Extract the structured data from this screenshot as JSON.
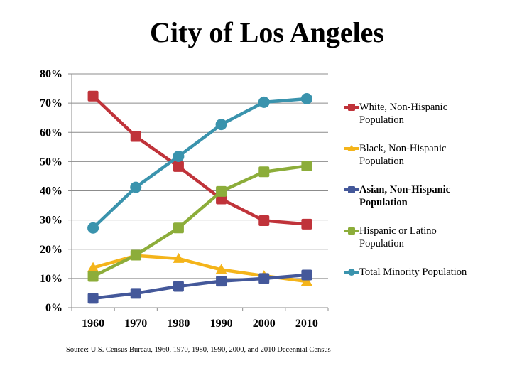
{
  "chart_data": {
    "type": "line",
    "title": "City of Los Angeles",
    "xlabel": "",
    "ylabel": "",
    "categories": [
      "1960",
      "1970",
      "1980",
      "1990",
      "2000",
      "2010"
    ],
    "ylim": [
      0,
      80
    ],
    "yticks": [
      "0%",
      "10%",
      "20%",
      "30%",
      "40%",
      "50%",
      "60%",
      "70%",
      "80%"
    ],
    "grid": true,
    "legend_position": "right",
    "series": [
      {
        "name": "White, Non-Hispanic Population",
        "marker": "square",
        "color": "#c0333a",
        "bold": false,
        "values": [
          72.4,
          58.6,
          48.3,
          37.2,
          29.8,
          28.6
        ]
      },
      {
        "name": "Black, Non-Hispanic Population",
        "marker": "triangle",
        "color": "#f4b41a",
        "bold": false,
        "values": [
          13.7,
          17.8,
          16.8,
          13.0,
          10.9,
          9.0
        ]
      },
      {
        "name": "Asian, Non-Hispanic Population",
        "marker": "square",
        "color": "#44589a",
        "bold": true,
        "values": [
          3.2,
          4.9,
          7.3,
          9.1,
          10.0,
          11.2
        ]
      },
      {
        "name": "Hispanic or Latino Population",
        "marker": "square",
        "color": "#8cad3a",
        "bold": false,
        "values": [
          10.7,
          18.0,
          27.3,
          39.8,
          46.5,
          48.5
        ]
      },
      {
        "name": "Total Minority Population",
        "marker": "circle",
        "color": "#3a93ad",
        "bold": false,
        "values": [
          27.3,
          41.2,
          51.8,
          62.7,
          70.3,
          71.5
        ]
      }
    ],
    "legend_lines": [
      [
        "White, Non-Hispanic",
        "Population"
      ],
      [
        "Black, Non-Hispanic",
        "Population"
      ],
      [
        "Asian, Non-Hispanic",
        "Population"
      ],
      [
        "Hispanic or Latino",
        "Population"
      ],
      [
        "Total Minority Population"
      ]
    ],
    "source": "Source: U.S. Census Bureau, 1960, 1970, 1980, 1990, 2000, and 2010 Decennial Census"
  }
}
